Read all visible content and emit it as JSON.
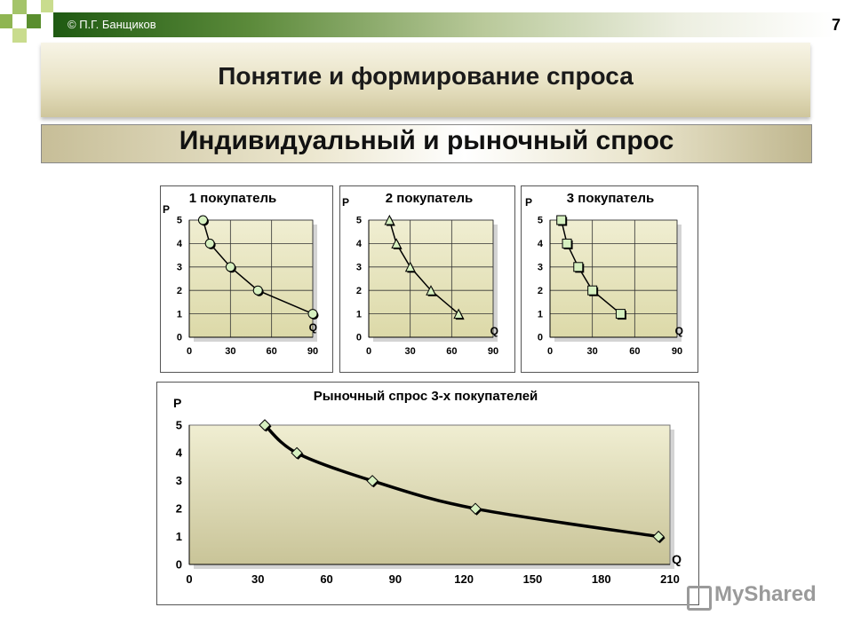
{
  "header": {
    "copyright": "© П.Г. Банщиков",
    "slide_number": "7",
    "title": "Понятие и формирование спроса",
    "subtitle": "Индивидуальный и рыночный спрос"
  },
  "colors": {
    "plot_area": "#e9e6bf",
    "marker_fill": "#d6f0c0",
    "line": "#000000"
  },
  "watermark": "MyShared",
  "chart_data": [
    {
      "type": "line",
      "title": "1 покупатель",
      "xlabel": "Q",
      "ylabel": "P",
      "marker": "circle",
      "xlim": [
        0,
        90
      ],
      "ylim": [
        0,
        5
      ],
      "xticks": [
        0,
        30,
        60,
        90
      ],
      "yticks": [
        0,
        1,
        2,
        3,
        4,
        5
      ],
      "grid": true,
      "x": [
        10,
        15,
        30,
        50,
        90
      ],
      "y": [
        5,
        4,
        3,
        2,
        1
      ]
    },
    {
      "type": "line",
      "title": "2 покупатель",
      "xlabel": "Q",
      "ylabel": "P",
      "marker": "triangle",
      "xlim": [
        0,
        90
      ],
      "ylim": [
        0,
        5
      ],
      "xticks": [
        0,
        30,
        60,
        90
      ],
      "yticks": [
        0,
        1,
        2,
        3,
        4,
        5
      ],
      "grid": true,
      "x": [
        15,
        20,
        30,
        45,
        65
      ],
      "y": [
        5,
        4,
        3,
        2,
        1
      ]
    },
    {
      "type": "line",
      "title": "3 покупатель",
      "xlabel": "Q",
      "ylabel": "P",
      "marker": "square",
      "xlim": [
        0,
        90
      ],
      "ylim": [
        0,
        5
      ],
      "xticks": [
        0,
        30,
        60,
        90
      ],
      "yticks": [
        0,
        1,
        2,
        3,
        4,
        5
      ],
      "grid": true,
      "x": [
        8,
        12,
        20,
        30,
        50
      ],
      "y": [
        5,
        4,
        3,
        2,
        1
      ]
    },
    {
      "type": "line",
      "title": "Рыночный спрос 3-х покупателей",
      "xlabel": "Q",
      "ylabel": "P",
      "marker": "diamond",
      "xlim": [
        0,
        210
      ],
      "ylim": [
        0,
        5
      ],
      "xticks": [
        0,
        30,
        60,
        90,
        120,
        150,
        180,
        210
      ],
      "yticks": [
        0,
        1,
        2,
        3,
        4,
        5
      ],
      "grid": false,
      "x": [
        33,
        47,
        80,
        125,
        205
      ],
      "y": [
        5,
        4,
        3,
        2,
        1
      ]
    }
  ]
}
